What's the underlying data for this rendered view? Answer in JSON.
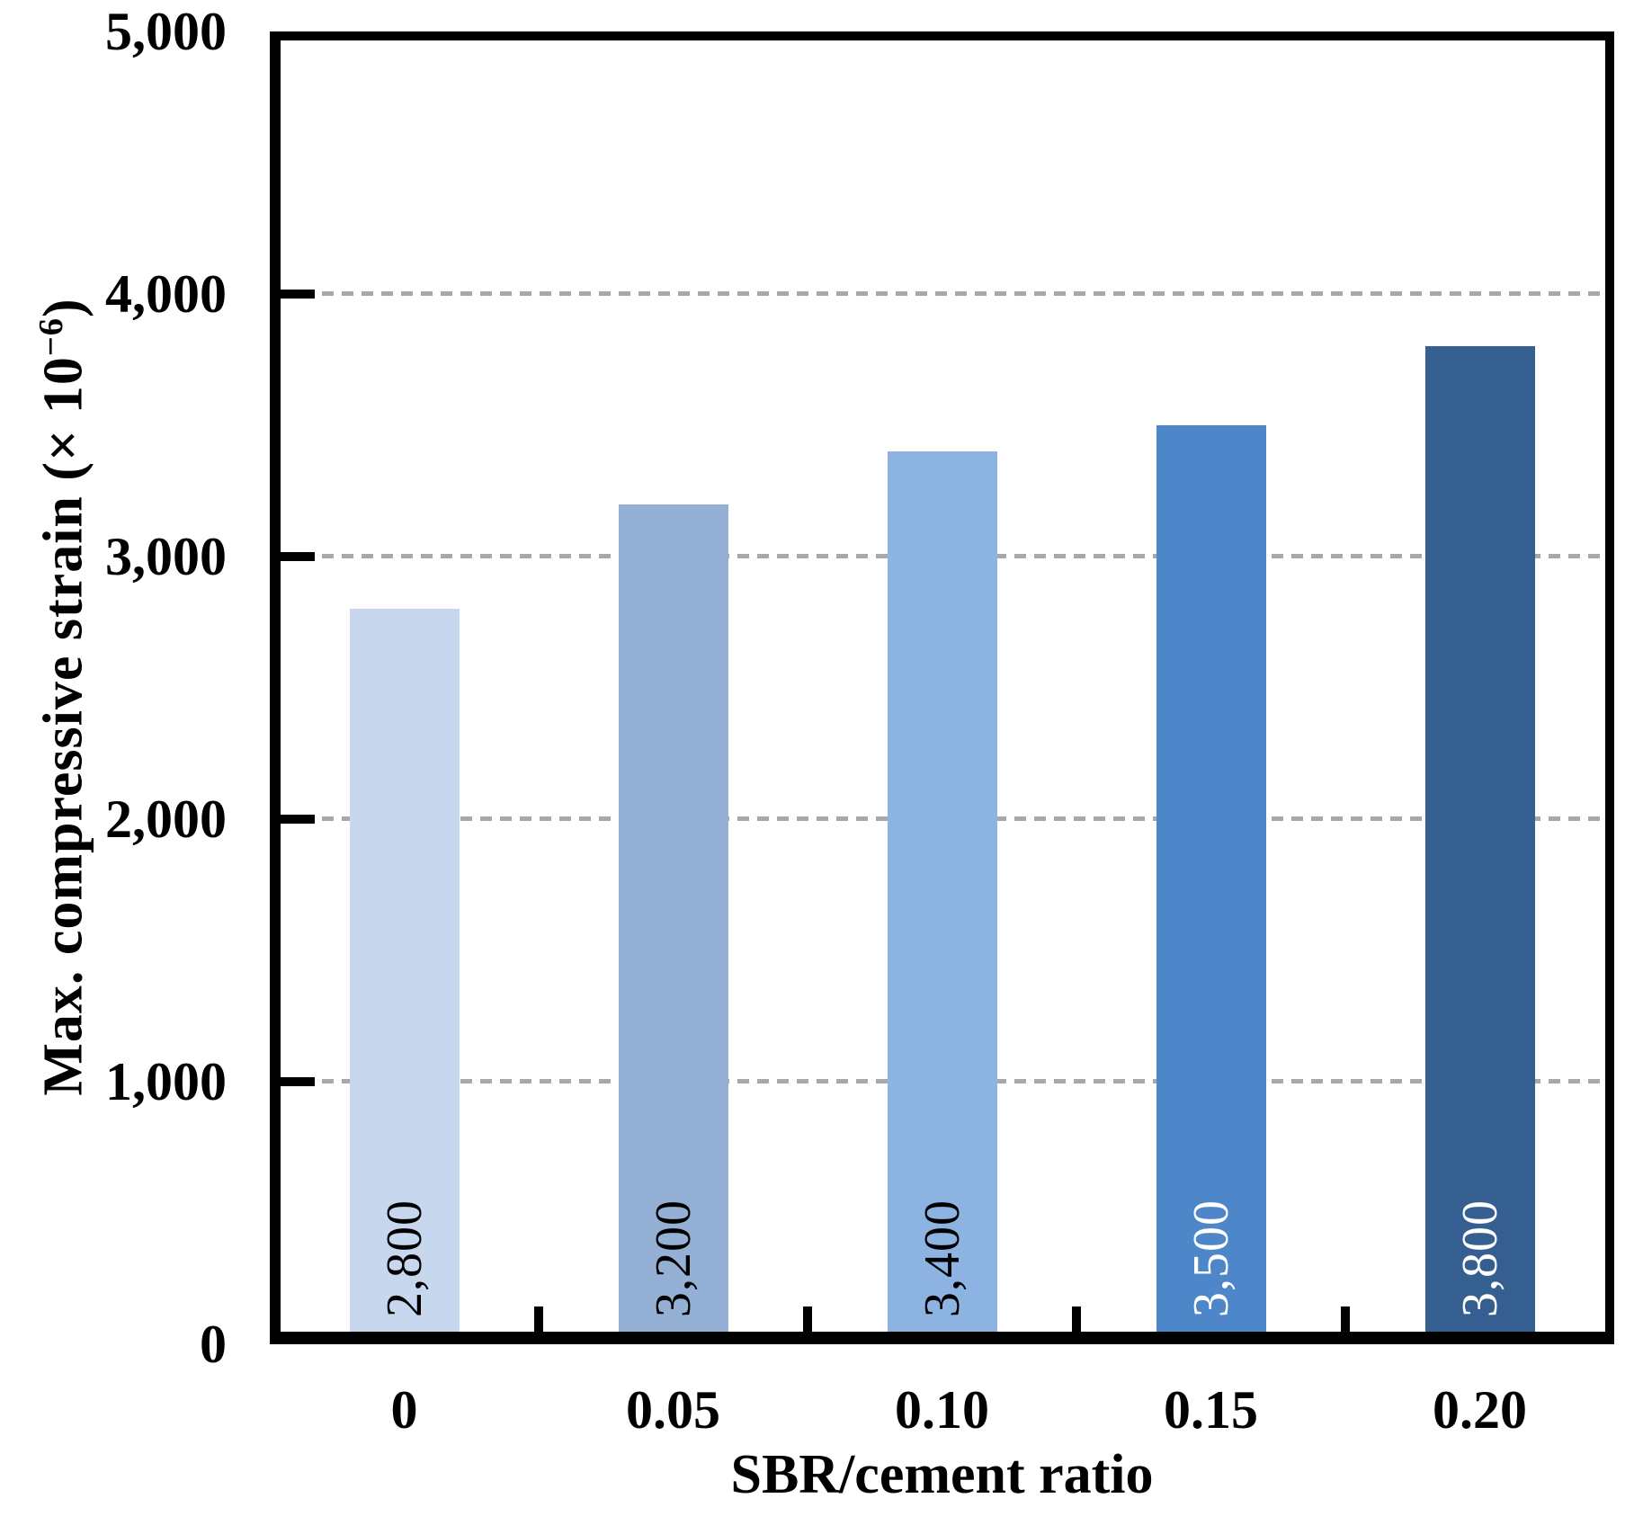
{
  "chart_data": {
    "type": "bar",
    "title": "",
    "xlabel": "SBR/cement ratio",
    "ylabel": "Max. compressive strain  (× 10⁻⁶)",
    "ylabel_parts": {
      "prefix": "Max. compressive strain  (× 10",
      "sup": "−6",
      "suffix": ")"
    },
    "categories": [
      "0",
      "0.05",
      "0.10",
      "0.15",
      "0.20"
    ],
    "values": [
      2800,
      3200,
      3400,
      3500,
      3800
    ],
    "value_labels": [
      "2,800",
      "3,200",
      "3,400",
      "3,500",
      "3,800"
    ],
    "bar_colors": [
      "#c6d7ee",
      "#95b0d5",
      "#8db3e2",
      "#4e87c9",
      "#365f91"
    ],
    "value_label_colors": [
      "#000000",
      "#000000",
      "#000000",
      "#ffffff",
      "#ffffff"
    ],
    "ylim": [
      0,
      5000
    ],
    "yticks": [
      0,
      1000,
      2000,
      3000,
      4000,
      5000
    ],
    "ytick_labels": [
      "0",
      "1,000",
      "2,000",
      "3,000",
      "4,000",
      "5,000"
    ],
    "grid": "horizontal-dashed",
    "gridline_color": "#a8a8a8",
    "axis_color": "#000000",
    "legend": "none"
  }
}
